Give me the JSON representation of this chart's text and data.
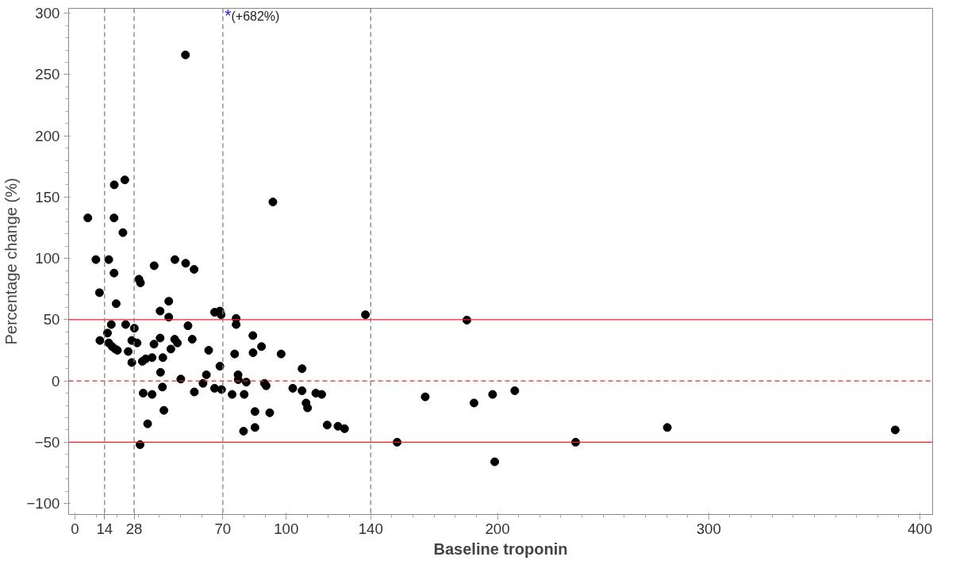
{
  "chart_data": {
    "type": "scatter",
    "xlabel": "Baseline troponin",
    "ylabel": "Percentage change (%)",
    "x": [
      6.1,
      9.9,
      11.6,
      11.8,
      16.0,
      18.6,
      18.5,
      18.5,
      19.5,
      23.6,
      22.7,
      15.4,
      17.2,
      16.0,
      17.6,
      19.1,
      20.1,
      24.0,
      28.1,
      25.2,
      26.9,
      26.9,
      29.4,
      30.3,
      31.0,
      37.5,
      30.8,
      47.3,
      52.4,
      56.4,
      52.3,
      44.4,
      40.3,
      44.4,
      53.5,
      40.3,
      37.4,
      47.2,
      48.5,
      55.5,
      45.4,
      41.6,
      36.5,
      33.5,
      31.9,
      40.5,
      41.4,
      50.1,
      32.3,
      36.5,
      42.1,
      34.4,
      56.5,
      60.6,
      63.3,
      62.2,
      66.1,
      68.6,
      69.2,
      68.6,
      66.1,
      69.4,
      76.3,
      76.3,
      75.6,
      77.2,
      77.3,
      74.4,
      81.1,
      80.1,
      79.8,
      84.2,
      84.3,
      88.3,
      89.7,
      90.5,
      85.2,
      85.2,
      92.2,
      93.7,
      97.6,
      103.1,
      107.5,
      107.5,
      109.4,
      110.1,
      114.0,
      116.8,
      119.4,
      124.5,
      127.6,
      137.5,
      152.5,
      165.8,
      185.5,
      188.9,
      197.7,
      198.7,
      208.2,
      237.0,
      280.4,
      388.3
    ],
    "values": [
      133,
      99,
      72,
      33,
      99,
      160,
      133,
      88,
      63,
      164,
      121,
      39,
      46,
      31,
      28,
      26,
      25,
      46,
      43,
      24,
      33,
      15,
      31,
      83,
      80,
      94,
      -52,
      99,
      96,
      91,
      266,
      65,
      57,
      52,
      45,
      35,
      30,
      34,
      31,
      34,
      26,
      19,
      19,
      18,
      16,
      7,
      -5,
      1.5,
      -10,
      -11,
      -24,
      -35,
      -9,
      -2,
      25,
      5,
      56,
      57,
      54,
      12,
      -6,
      -7,
      51,
      46,
      22,
      5,
      1,
      -11,
      -1,
      -11,
      -41,
      37,
      23,
      28,
      -2,
      -4,
      -25,
      -38,
      -26,
      146,
      22,
      -6,
      10,
      -8,
      -18,
      -22,
      -10,
      -11,
      -36,
      -37,
      -39,
      54,
      -50,
      -13,
      49.6,
      -18,
      -11,
      -66,
      -8,
      -50,
      -38,
      -40
    ],
    "color": "#000000",
    "marker": "circle",
    "xlim": [
      -3,
      406
    ],
    "ylim": [
      -109,
      304
    ],
    "xticks": [
      0,
      14,
      28,
      70,
      100,
      140,
      200,
      300,
      400
    ],
    "yticks": [
      -100,
      -50,
      0,
      50,
      100,
      150,
      200,
      250,
      300
    ],
    "grid": false,
    "legend": false,
    "ref_lines": [
      {
        "axis": "y",
        "value": 50,
        "color": "#e8262a",
        "line_style": "solid"
      },
      {
        "axis": "y",
        "value": -50,
        "color": "#e8262a",
        "line_style": "solid"
      },
      {
        "axis": "y",
        "value": 0,
        "color": "#e8262a",
        "line_style": "dashed"
      },
      {
        "axis": "x",
        "value": 14,
        "color": "#808080",
        "line_style": "dashed"
      },
      {
        "axis": "x",
        "value": 28,
        "color": "#808080",
        "line_style": "dashed"
      },
      {
        "axis": "x",
        "value": 70,
        "color": "#808080",
        "line_style": "dashed"
      },
      {
        "axis": "x",
        "value": 140,
        "color": "#808080",
        "line_style": "dashed"
      }
    ],
    "annotations": [
      "*(+682%)"
    ]
  }
}
